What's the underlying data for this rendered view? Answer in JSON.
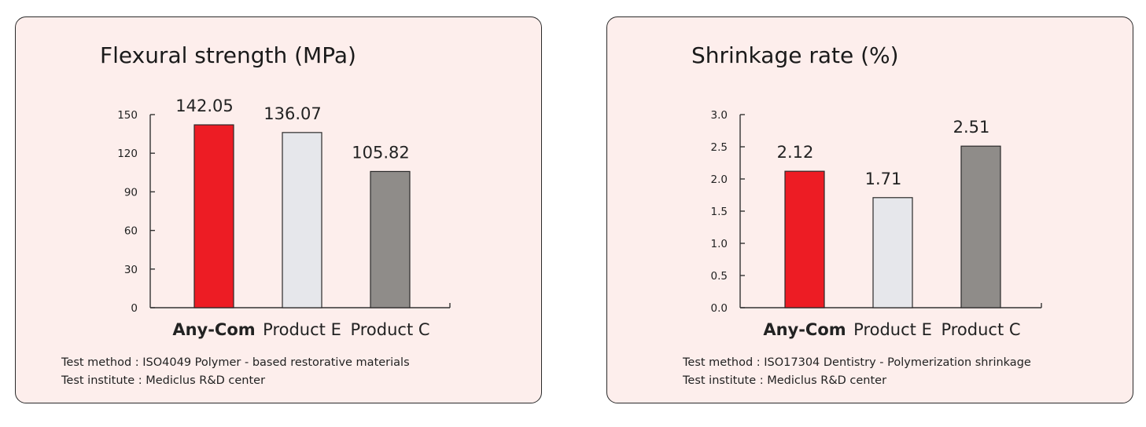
{
  "colors": {
    "panel_bg": "#fdeeec",
    "axis": "#333333",
    "bar_border": "#2a2a2a"
  },
  "chart_data": [
    {
      "type": "bar",
      "title": "Flexural strength (MPa)",
      "categories": [
        "Any-Com",
        "Product E",
        "Product C"
      ],
      "highlight_category": "Any-Com",
      "values": [
        142.05,
        136.07,
        105.82
      ],
      "value_labels": [
        "142.05",
        "136.07",
        "105.82"
      ],
      "bar_colors": [
        "#ed1c24",
        "#e6e7eb",
        "#8f8c89"
      ],
      "yticks": [
        "0",
        "30",
        "60",
        "90",
        "120",
        "150"
      ],
      "ytick_values": [
        0,
        30,
        60,
        90,
        120,
        150
      ],
      "ylim": [
        0,
        150
      ],
      "grid": false,
      "footnotes": {
        "method": "Test method : ISO4049 Polymer - based restorative materials",
        "institute": "Test institute : Mediclus R&D center"
      }
    },
    {
      "type": "bar",
      "title": "Shrinkage rate (%)",
      "categories": [
        "Any-Com",
        "Product E",
        "Product C"
      ],
      "highlight_category": "Any-Com",
      "values": [
        2.12,
        1.71,
        2.51
      ],
      "value_labels": [
        "2.12",
        "1.71",
        "2.51"
      ],
      "bar_colors": [
        "#ed1c24",
        "#e6e7eb",
        "#8f8c89"
      ],
      "yticks": [
        "0.0",
        "0.5",
        "1.0",
        "1.5",
        "2.0",
        "2.5",
        "3.0"
      ],
      "ytick_values": [
        0,
        0.5,
        1.0,
        1.5,
        2.0,
        2.5,
        3.0
      ],
      "ylim": [
        0,
        3.0
      ],
      "grid": false,
      "footnotes": {
        "method": "Test method : ISO17304 Dentistry - Polymerization shrinkage",
        "institute": "Test institute : Mediclus R&D center"
      }
    }
  ]
}
